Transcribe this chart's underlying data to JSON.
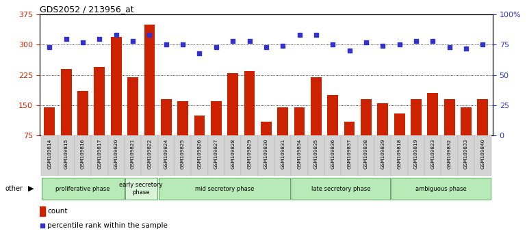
{
  "title": "GDS2052 / 213956_at",
  "samples": [
    "GSM109814",
    "GSM109815",
    "GSM109816",
    "GSM109817",
    "GSM109820",
    "GSM109821",
    "GSM109822",
    "GSM109824",
    "GSM109825",
    "GSM109826",
    "GSM109827",
    "GSM109828",
    "GSM109829",
    "GSM109830",
    "GSM109831",
    "GSM109834",
    "GSM109835",
    "GSM109836",
    "GSM109837",
    "GSM109838",
    "GSM109839",
    "GSM109818",
    "GSM109819",
    "GSM109823",
    "GSM109832",
    "GSM109833",
    "GSM109840"
  ],
  "counts": [
    145,
    240,
    185,
    245,
    320,
    220,
    350,
    165,
    160,
    125,
    160,
    230,
    235,
    110,
    145,
    145,
    220,
    175,
    110,
    165,
    155,
    130,
    165,
    180,
    165,
    145,
    165
  ],
  "percentiles": [
    73,
    80,
    77,
    80,
    83,
    78,
    83,
    75,
    75,
    68,
    73,
    78,
    78,
    73,
    74,
    83,
    83,
    75,
    70,
    77,
    74,
    75,
    78,
    78,
    73,
    72,
    75
  ],
  "phases": [
    {
      "label": "proliferative phase",
      "start": 0,
      "end": 5,
      "color": "#b8eab8"
    },
    {
      "label": "early secretory\nphase",
      "start": 5,
      "end": 7,
      "color": "#d8f5d8"
    },
    {
      "label": "mid secretory phase",
      "start": 7,
      "end": 15,
      "color": "#b8eab8"
    },
    {
      "label": "late secretory phase",
      "start": 15,
      "end": 21,
      "color": "#b8eab8"
    },
    {
      "label": "ambiguous phase",
      "start": 21,
      "end": 27,
      "color": "#b8eab8"
    }
  ],
  "ylim_left": [
    75,
    375
  ],
  "ylim_right": [
    0,
    100
  ],
  "yticks_left": [
    75,
    150,
    225,
    300,
    375
  ],
  "yticks_right": [
    0,
    25,
    50,
    75,
    100
  ],
  "bar_color": "#cc2200",
  "dot_color": "#3333cc",
  "bar_bottom": 75
}
